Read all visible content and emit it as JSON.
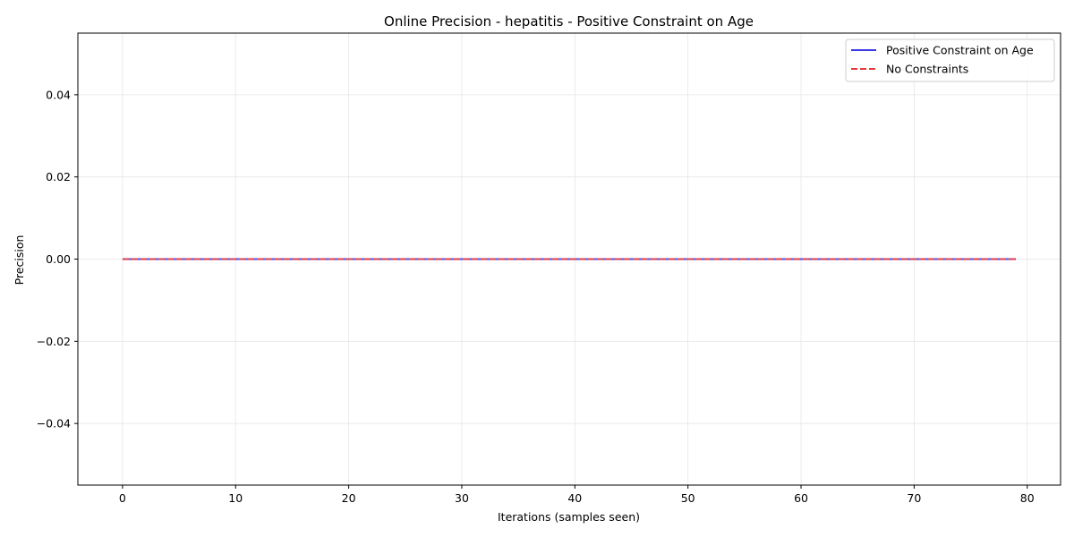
{
  "chart_data": {
    "type": "line",
    "title": "Online Precision - hepatitis - Positive Constraint on Age",
    "xlabel": "Iterations (samples seen)",
    "ylabel": "Precision",
    "xlim": [
      -3.95,
      82.95
    ],
    "ylim": [
      -0.055,
      0.055
    ],
    "xticks": [
      0,
      10,
      20,
      30,
      40,
      50,
      60,
      70,
      80
    ],
    "yticks": [
      -0.04,
      -0.02,
      0.0,
      0.02,
      0.04
    ],
    "ytick_labels": [
      "−0.04",
      "−0.02",
      "0.00",
      "0.02",
      "0.04"
    ],
    "grid": true,
    "legend_position": "top-right",
    "series": [
      {
        "name": "Positive Constraint on Age",
        "color": "#3a3ae6",
        "style": "solid",
        "x_start": 0,
        "x_end": 79,
        "values": [
          0,
          0,
          0,
          0,
          0,
          0,
          0,
          0,
          0,
          0,
          0,
          0,
          0,
          0,
          0,
          0,
          0,
          0,
          0,
          0,
          0,
          0,
          0,
          0,
          0,
          0,
          0,
          0,
          0,
          0,
          0,
          0,
          0,
          0,
          0,
          0,
          0,
          0,
          0,
          0,
          0,
          0,
          0,
          0,
          0,
          0,
          0,
          0,
          0,
          0,
          0,
          0,
          0,
          0,
          0,
          0,
          0,
          0,
          0,
          0,
          0,
          0,
          0,
          0,
          0,
          0,
          0,
          0,
          0,
          0,
          0,
          0,
          0,
          0,
          0,
          0,
          0,
          0,
          0,
          0
        ]
      },
      {
        "name": "No Constraints",
        "color": "#e83a3a",
        "style": "dashed",
        "x_start": 0,
        "x_end": 79,
        "values": [
          0,
          0,
          0,
          0,
          0,
          0,
          0,
          0,
          0,
          0,
          0,
          0,
          0,
          0,
          0,
          0,
          0,
          0,
          0,
          0,
          0,
          0,
          0,
          0,
          0,
          0,
          0,
          0,
          0,
          0,
          0,
          0,
          0,
          0,
          0,
          0,
          0,
          0,
          0,
          0,
          0,
          0,
          0,
          0,
          0,
          0,
          0,
          0,
          0,
          0,
          0,
          0,
          0,
          0,
          0,
          0,
          0,
          0,
          0,
          0,
          0,
          0,
          0,
          0,
          0,
          0,
          0,
          0,
          0,
          0,
          0,
          0,
          0,
          0,
          0,
          0,
          0,
          0,
          0,
          0
        ]
      }
    ]
  }
}
